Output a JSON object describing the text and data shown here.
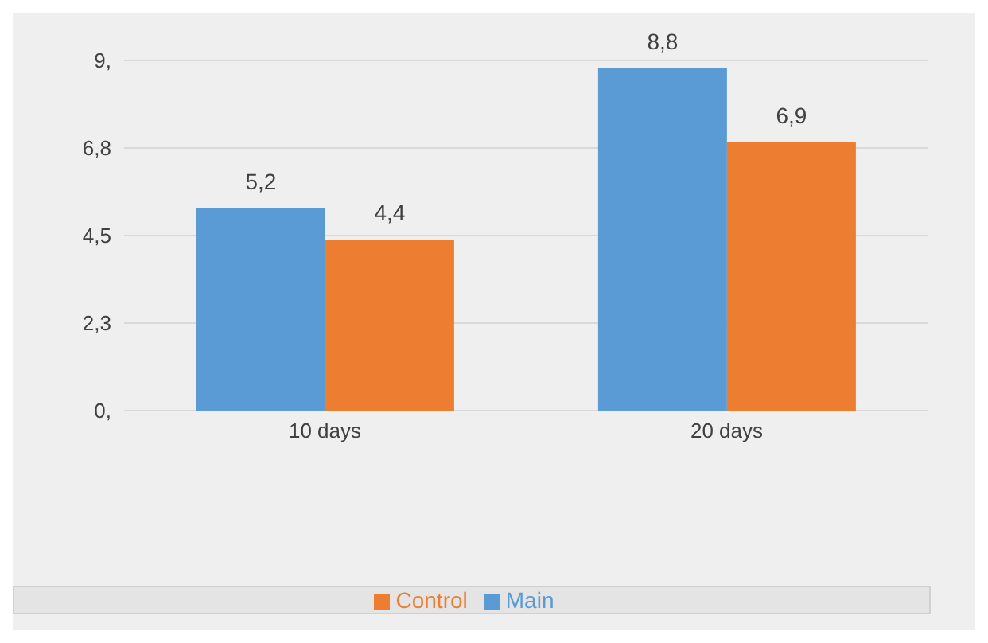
{
  "chart_data": {
    "type": "bar",
    "categories": [
      "10 days",
      "20 days"
    ],
    "series": [
      {
        "name": "Main",
        "color": "#5b9bd5",
        "values": [
          5.2,
          8.8
        ],
        "value_labels": [
          "5,2",
          "8,8"
        ]
      },
      {
        "name": "Control",
        "color": "#ed7d31",
        "values": [
          4.4,
          6.9
        ],
        "value_labels": [
          "4,4",
          "6,9"
        ]
      }
    ],
    "ylim": [
      0,
      9
    ],
    "yticks": [
      {
        "value": 0,
        "label": "0,"
      },
      {
        "value": 2.25,
        "label": "2,3"
      },
      {
        "value": 4.5,
        "label": "4,5"
      },
      {
        "value": 6.75,
        "label": "6,8"
      },
      {
        "value": 9,
        "label": "9,"
      }
    ],
    "grid": "y",
    "legend": "bottom"
  }
}
